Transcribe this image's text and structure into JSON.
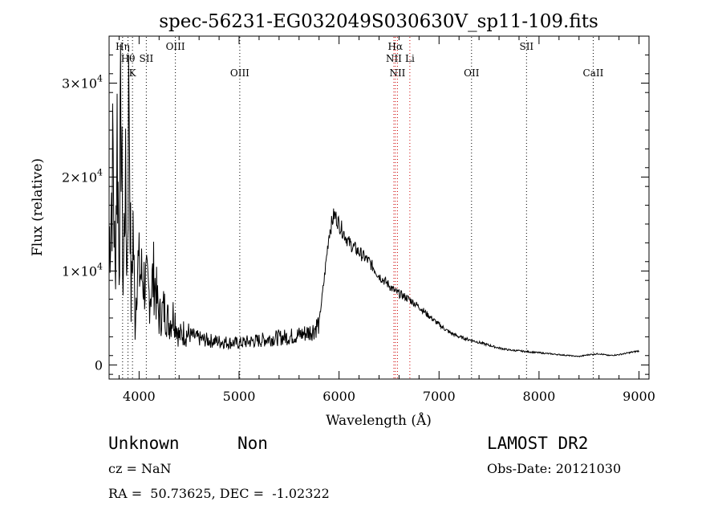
{
  "chart_data": {
    "type": "line",
    "title": "spec-56231-EG032049S030630V_sp11-109.fits",
    "xlabel": "Wavelength (Å)",
    "ylabel": "Flux (relative)",
    "xlim": [
      3700,
      9100
    ],
    "ylim": [
      -1500,
      35000
    ],
    "x_ticks": [
      4000,
      5000,
      6000,
      7000,
      8000,
      9000
    ],
    "x_tick_labels": [
      "4000",
      "5000",
      "6000",
      "7000",
      "8000",
      "9000"
    ],
    "y_ticks": [
      {
        "value": 0,
        "base": "0",
        "exp": ""
      },
      {
        "value": 10000,
        "base": "1×10",
        "exp": "4"
      },
      {
        "value": 20000,
        "base": "2×10",
        "exp": "4"
      },
      {
        "value": 30000,
        "base": "3×10",
        "exp": "4"
      }
    ],
    "series": [
      {
        "name": "spectrum",
        "color": "#000000",
        "x": [
          3700,
          3720,
          3740,
          3760,
          3780,
          3800,
          3820,
          3840,
          3860,
          3880,
          3900,
          3920,
          3940,
          3960,
          3980,
          4000,
          4050,
          4100,
          4150,
          4200,
          4250,
          4300,
          4350,
          4400,
          4450,
          4500,
          4600,
          4700,
          4800,
          4900,
          5000,
          5100,
          5200,
          5300,
          5400,
          5500,
          5600,
          5700,
          5750,
          5800,
          5850,
          5900,
          5950,
          5980,
          6000,
          6050,
          6100,
          6200,
          6300,
          6400,
          6500,
          6560,
          6600,
          6700,
          6800,
          6900,
          7000,
          7100,
          7200,
          7300,
          7400,
          7500,
          7600,
          7700,
          7800,
          7900,
          8000,
          8100,
          8200,
          8300,
          8400,
          8500,
          8600,
          8700,
          8800,
          8900,
          9000
        ],
        "y": [
          13000,
          17000,
          22000,
          9000,
          25000,
          12000,
          28000,
          8000,
          20000,
          10000,
          32000,
          6000,
          15000,
          4000,
          11000,
          10000,
          9000,
          7500,
          9500,
          5000,
          6000,
          4500,
          5500,
          3000,
          3500,
          3200,
          2800,
          2600,
          2500,
          2400,
          2300,
          2500,
          2600,
          2800,
          2900,
          3000,
          3200,
          3500,
          3800,
          4500,
          9000,
          14000,
          16000,
          15500,
          15000,
          14000,
          13000,
          12000,
          11000,
          9500,
          8500,
          7800,
          7600,
          7000,
          6200,
          5200,
          4300,
          3500,
          3000,
          2700,
          2400,
          2100,
          1800,
          1600,
          1500,
          1400,
          1300,
          1200,
          1100,
          1000,
          900,
          1100,
          1200,
          1000,
          1100,
          1300,
          1500
        ]
      }
    ],
    "line_markers": [
      {
        "wl": 3835,
        "label": "Hη",
        "row": 1,
        "color": "#000000"
      },
      {
        "wl": 3889,
        "label": "Hθ",
        "row": 2,
        "color": "#000000"
      },
      {
        "wl": 3934,
        "label": "K",
        "row": 3,
        "color": "#000000"
      },
      {
        "wl": 4072,
        "label": "SII",
        "row": 2,
        "color": "#000000"
      },
      {
        "wl": 4363,
        "label": "OIII",
        "row": 1,
        "color": "#000000"
      },
      {
        "wl": 5007,
        "label": "OIII",
        "row": 3,
        "color": "#000000"
      },
      {
        "wl": 6563,
        "label": "Hα",
        "row": 1,
        "color": "#cc0000"
      },
      {
        "wl": 6548,
        "label": "NII",
        "row": 2,
        "color": "#cc0000"
      },
      {
        "wl": 6708,
        "label": "Li",
        "row": 2,
        "color": "#cc0000"
      },
      {
        "wl": 6584,
        "label": "NII",
        "row": 3,
        "color": "#cc0000"
      },
      {
        "wl": 7325,
        "label": "OII",
        "row": 3,
        "color": "#000000"
      },
      {
        "wl": 7875,
        "label": "SII",
        "row": 1,
        "color": "#000000"
      },
      {
        "wl": 8542,
        "label": "CaII",
        "row": 3,
        "color": "#000000"
      }
    ]
  },
  "info": {
    "class_label": "Unknown",
    "subclass_label": "Non",
    "cz": "cz = NaN",
    "radec": "RA =  50.73625, DEC =  -1.02322",
    "survey": "LAMOST DR2",
    "obs_date": "Obs-Date: 20121030"
  }
}
